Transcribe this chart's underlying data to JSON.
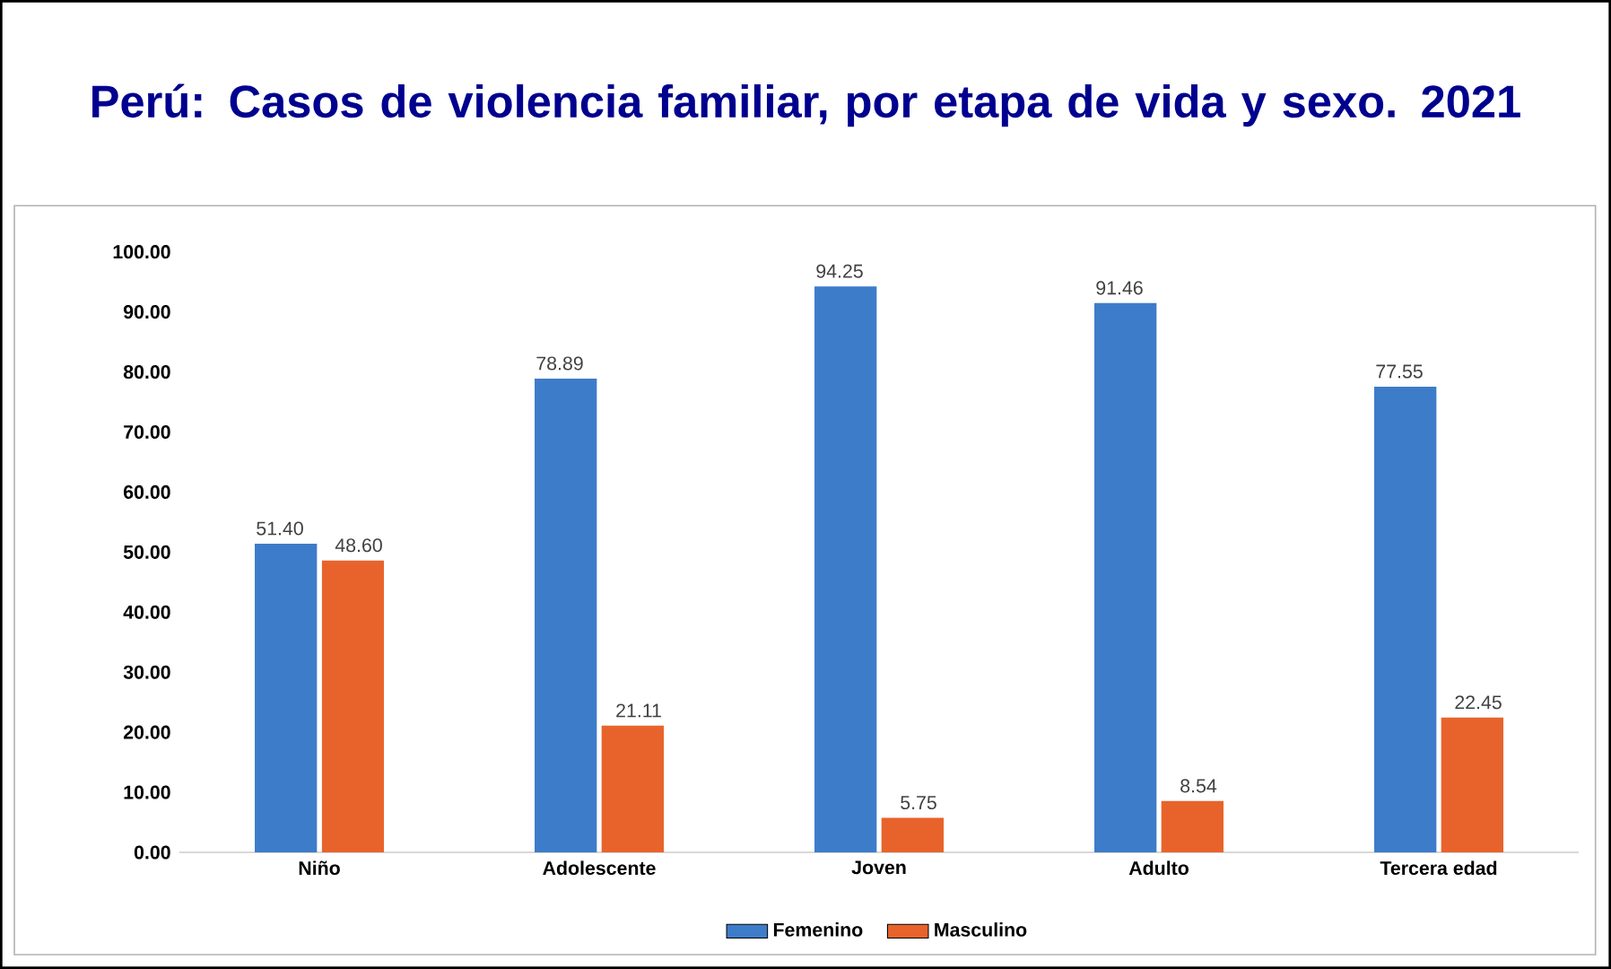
{
  "chart_data": {
    "type": "bar",
    "title": "Perú: Casos de violencia familiar, por etapa de vida y sexo. 2021",
    "categories": [
      "Niño",
      "Adolescente",
      "Joven",
      "Adulto",
      "Tercera edad"
    ],
    "series": [
      {
        "name": "Femenino",
        "color": "#3d7cc9",
        "values": [
          51.4,
          78.89,
          94.25,
          91.46,
          77.55
        ],
        "value_labels": [
          "51.40",
          "78.89",
          "94.25",
          "91.46",
          "77.55"
        ]
      },
      {
        "name": "Masculino",
        "color": "#e8632b",
        "values": [
          48.6,
          21.11,
          5.75,
          8.54,
          22.45
        ],
        "value_labels": [
          "48.60",
          "21.11",
          "5.75",
          "8.54",
          "22.45"
        ]
      }
    ],
    "ylim": [
      0,
      100
    ],
    "yticks": [
      {
        "value": 0,
        "label": "0.00"
      },
      {
        "value": 10,
        "label": "10.00"
      },
      {
        "value": 20,
        "label": "20.00"
      },
      {
        "value": 30,
        "label": "30.00"
      },
      {
        "value": 40,
        "label": "40.00"
      },
      {
        "value": 50,
        "label": "50.00"
      },
      {
        "value": 60,
        "label": "60.00"
      },
      {
        "value": 70,
        "label": "70.00"
      },
      {
        "value": 80,
        "label": "80.00"
      },
      {
        "value": 90,
        "label": "90.00"
      },
      {
        "value": 100,
        "label": "100.00"
      }
    ],
    "grid": false,
    "legend": "bottom"
  }
}
